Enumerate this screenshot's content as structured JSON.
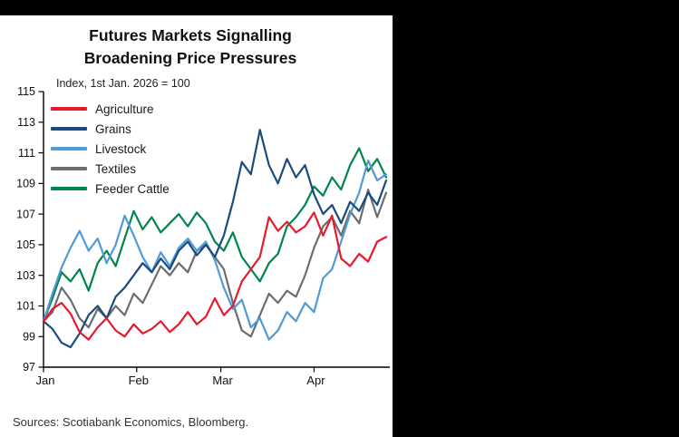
{
  "title": {
    "line1": "Futures Markets Signalling",
    "line2": "Broadening Price Pressures"
  },
  "subtitle": "Index, 1st Jan. 2026 = 100",
  "source": "Sources: Scotiabank Economics, Bloomberg.",
  "colors": {
    "background": "#000000",
    "panel": "#ffffff",
    "axis": "#000000",
    "agriculture": "#e8192c",
    "grains": "#1b4a7e",
    "livestock": "#4f9bd5",
    "textiles": "#6b6d70",
    "feeder_cattle": "#00854a"
  },
  "chart_data": {
    "type": "line",
    "title": "Futures Markets Signalling Broadening Price Pressures",
    "subtitle": "Index, 1st Jan. 2026 = 100",
    "xlabel": "",
    "ylabel": "Index, 1st Jan. 2026 = 100",
    "ylim": [
      97,
      115
    ],
    "yticks": [
      97,
      99,
      101,
      103,
      105,
      107,
      109,
      111,
      113,
      115
    ],
    "grid": false,
    "legend_position": "top-left-inside",
    "x_unit": "days from 1st Jan 2026",
    "x": [
      0,
      3,
      6,
      9,
      12,
      15,
      18,
      21,
      24,
      27,
      30,
      33,
      36,
      39,
      42,
      45,
      48,
      51,
      54,
      57,
      60,
      63,
      66,
      69,
      72,
      75,
      78,
      81,
      84,
      87,
      90,
      93,
      96,
      99,
      102,
      105,
      108,
      111,
      114
    ],
    "xticks": [
      {
        "label": "Jan",
        "day": 0
      },
      {
        "label": "Feb",
        "day": 31
      },
      {
        "label": "Mar",
        "day": 59
      },
      {
        "label": "Apr",
        "day": 90
      }
    ],
    "series": [
      {
        "name": "Agriculture",
        "color": "#e8192c",
        "values": [
          100,
          100.8,
          101.2,
          100.5,
          99.3,
          98.8,
          99.6,
          100.2,
          99.4,
          99.0,
          99.8,
          99.2,
          99.5,
          100.0,
          99.3,
          99.8,
          100.6,
          99.8,
          100.3,
          101.5,
          100.4,
          101.0,
          102.6,
          103.4,
          104.2,
          106.8,
          105.9,
          106.5,
          105.8,
          106.2,
          107.1,
          105.6,
          106.9,
          104.1,
          103.6,
          104.4,
          103.9,
          105.2,
          105.5
        ]
      },
      {
        "name": "Grains",
        "color": "#1b4a7e",
        "values": [
          100,
          99.5,
          98.6,
          98.3,
          99.2,
          100.4,
          101.0,
          100.2,
          101.6,
          102.2,
          103.0,
          103.8,
          103.2,
          104.1,
          103.4,
          104.6,
          105.2,
          104.3,
          105.0,
          104.2,
          105.6,
          107.8,
          110.4,
          109.6,
          112.5,
          110.2,
          109.0,
          110.6,
          109.4,
          110.2,
          108.3,
          107.0,
          107.6,
          106.4,
          107.8,
          107.2,
          108.4,
          107.6,
          109.2
        ]
      },
      {
        "name": "Livestock",
        "color": "#4f9bd5",
        "values": [
          100,
          101.8,
          103.5,
          104.8,
          105.9,
          104.6,
          105.4,
          103.8,
          105.0,
          106.9,
          105.6,
          104.2,
          103.2,
          104.5,
          103.6,
          104.8,
          105.4,
          104.6,
          105.2,
          104.0,
          102.2,
          100.8,
          101.4,
          99.6,
          100.2,
          98.8,
          99.4,
          100.6,
          100.0,
          101.2,
          100.6,
          102.8,
          103.4,
          105.2,
          107.0,
          108.4,
          110.5,
          109.2,
          109.6
        ]
      },
      {
        "name": "Textiles",
        "color": "#6b6d70",
        "values": [
          100,
          100.6,
          102.2,
          101.4,
          100.2,
          99.6,
          100.8,
          100.2,
          101.0,
          100.4,
          101.8,
          101.2,
          102.4,
          103.6,
          103.0,
          103.8,
          103.2,
          104.6,
          105.0,
          104.2,
          103.4,
          101.2,
          99.4,
          99.0,
          100.4,
          101.8,
          101.2,
          102.0,
          101.6,
          103.0,
          104.8,
          106.2,
          106.8,
          105.6,
          107.2,
          106.4,
          108.6,
          106.8,
          108.4
        ]
      },
      {
        "name": "Feeder Cattle",
        "color": "#00854a",
        "values": [
          100,
          101.5,
          103.2,
          102.6,
          103.4,
          102.0,
          103.8,
          104.6,
          103.6,
          105.4,
          107.2,
          106.0,
          106.8,
          105.8,
          106.4,
          107.0,
          106.2,
          107.1,
          106.4,
          105.2,
          104.6,
          105.8,
          104.2,
          103.4,
          102.6,
          103.8,
          104.4,
          106.2,
          106.8,
          107.6,
          108.8,
          108.2,
          109.4,
          108.6,
          110.2,
          111.3,
          109.8,
          110.6,
          109.4
        ]
      }
    ]
  }
}
